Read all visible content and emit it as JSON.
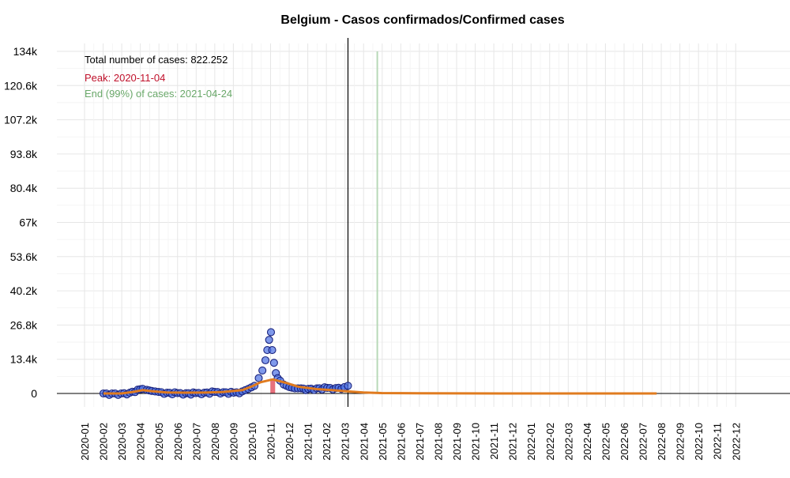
{
  "chart_data": {
    "type": "scatter",
    "title": "Belgium - Casos confirmados/Confirmed cases",
    "xlabel": "",
    "ylabel": "",
    "ylim": [
      0,
      134000
    ],
    "y_ticks": [
      0,
      13400,
      26800,
      40200,
      53600,
      67000,
      80400,
      93800,
      107200,
      120600,
      134000
    ],
    "y_tick_labels": [
      "0",
      "13.4k",
      "26.8k",
      "40.2k",
      "53.6k",
      "67k",
      "80.4k",
      "93.8k",
      "107.2k",
      "120.6k",
      "134k"
    ],
    "x_tick_labels": [
      "2020-01",
      "2020-02",
      "2020-03",
      "2020-04",
      "2020-05",
      "2020-06",
      "2020-07",
      "2020-08",
      "2020-09",
      "2020-10",
      "2020-11",
      "2020-12",
      "2021-01",
      "2021-02",
      "2021-03",
      "2021-04",
      "2021-05",
      "2021-06",
      "2021-07",
      "2021-08",
      "2021-09",
      "2021-10",
      "2021-11",
      "2021-12",
      "2022-01",
      "2022-02",
      "2022-03",
      "2022-04",
      "2022-05",
      "2022-06",
      "2022-07",
      "2022-08",
      "2022-09",
      "2022-10",
      "2022-11",
      "2022-12"
    ],
    "annotations": {
      "total": "Total number of cases: 822.252",
      "peak": "Peak: 2020-11-04",
      "end": "End (99%) of cases: 2021-04-24"
    },
    "markers": {
      "current_date": "2021-03-07",
      "end_date": "2021-04-24",
      "peak_date": "2020-11-04"
    },
    "series": [
      {
        "type": "scatter",
        "points": [
          [
            "2020-02-01",
            0
          ],
          [
            "2020-02-15",
            0
          ],
          [
            "2020-03-01",
            0
          ],
          [
            "2020-03-15",
            300
          ],
          [
            "2020-03-28",
            1500
          ],
          [
            "2020-04-05",
            1800
          ],
          [
            "2020-04-12",
            1400
          ],
          [
            "2020-04-20",
            1000
          ],
          [
            "2020-05-01",
            600
          ],
          [
            "2020-05-15",
            300
          ],
          [
            "2020-06-01",
            150
          ],
          [
            "2020-06-15",
            100
          ],
          [
            "2020-07-01",
            150
          ],
          [
            "2020-07-15",
            300
          ],
          [
            "2020-08-01",
            600
          ],
          [
            "2020-08-15",
            500
          ],
          [
            "2020-09-01",
            300
          ],
          [
            "2020-09-15",
            800
          ],
          [
            "2020-09-25",
            1800
          ],
          [
            "2020-10-05",
            3000
          ],
          [
            "2020-10-12",
            6000
          ],
          [
            "2020-10-18",
            9000
          ],
          [
            "2020-10-23",
            13000
          ],
          [
            "2020-10-26",
            17000
          ],
          [
            "2020-10-29",
            21000
          ],
          [
            "2020-11-01",
            24000
          ],
          [
            "2020-11-03",
            17000
          ],
          [
            "2020-11-06",
            12000
          ],
          [
            "2020-11-09",
            8000
          ],
          [
            "2020-11-12",
            6000
          ],
          [
            "2020-11-16",
            5000
          ],
          [
            "2020-11-22",
            3500
          ],
          [
            "2020-12-01",
            2500
          ],
          [
            "2020-12-10",
            2000
          ],
          [
            "2020-12-20",
            2000
          ],
          [
            "2021-01-01",
            1800
          ],
          [
            "2021-01-15",
            2000
          ],
          [
            "2021-02-01",
            2200
          ],
          [
            "2021-02-15",
            2100
          ],
          [
            "2021-03-01",
            2500
          ],
          [
            "2021-03-07",
            3000
          ]
        ]
      },
      {
        "type": "line",
        "name": "fit",
        "points": [
          [
            "2020-02-01",
            0
          ],
          [
            "2020-03-01",
            0
          ],
          [
            "2020-03-20",
            600
          ],
          [
            "2020-04-05",
            1300
          ],
          [
            "2020-04-20",
            900
          ],
          [
            "2020-05-15",
            400
          ],
          [
            "2020-06-15",
            300
          ],
          [
            "2020-07-15",
            350
          ],
          [
            "2020-08-15",
            600
          ],
          [
            "2020-09-15",
            1300
          ],
          [
            "2020-10-01",
            2800
          ],
          [
            "2020-10-15",
            4400
          ],
          [
            "2020-11-04",
            5500
          ],
          [
            "2020-11-25",
            4200
          ],
          [
            "2020-12-15",
            2700
          ],
          [
            "2021-01-15",
            1700
          ],
          [
            "2021-02-15",
            1200
          ],
          [
            "2021-03-07",
            800
          ],
          [
            "2021-04-01",
            400
          ],
          [
            "2021-05-01",
            150
          ],
          [
            "2021-07-01",
            50
          ],
          [
            "2021-12-01",
            10
          ],
          [
            "2022-07-25",
            0
          ]
        ]
      }
    ]
  }
}
